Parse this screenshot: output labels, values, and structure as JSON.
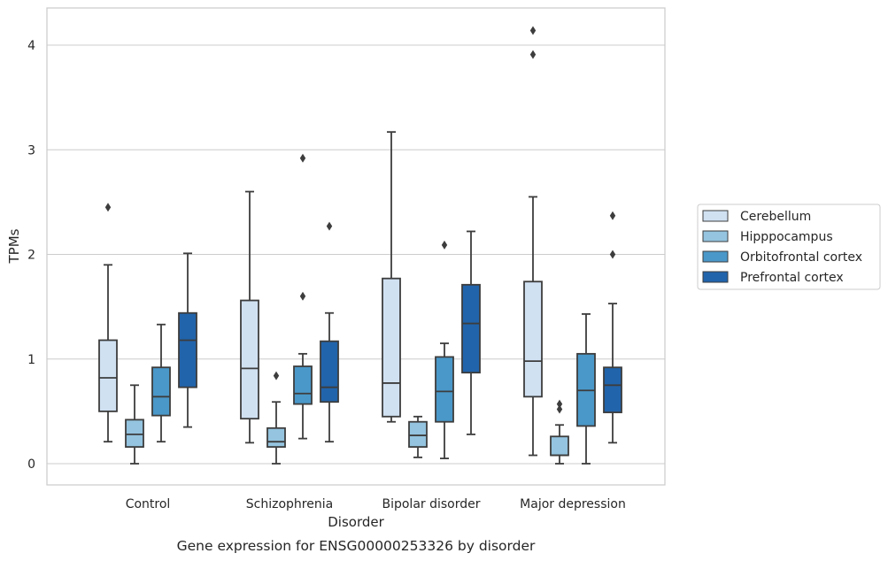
{
  "chart_data": {
    "type": "box",
    "caption": "Gene expression for ENSG00000253326 by disorder",
    "xlabel": "Disorder",
    "ylabel": "TPMs",
    "ylim": [
      -0.2,
      4.35
    ],
    "yticks": [
      0,
      1,
      2,
      3,
      4
    ],
    "grid": "horizontal",
    "legend_position": "right",
    "categories": [
      "Control",
      "Schizophrenia",
      "Bipolar disorder",
      "Major depression"
    ],
    "series": [
      {
        "name": "Cerebellum",
        "color": "#d0e1f2",
        "boxes": [
          {
            "whislo": 0.21,
            "q1": 0.5,
            "med": 0.82,
            "q3": 1.18,
            "whishi": 1.9,
            "fliers": [
              2.45
            ]
          },
          {
            "whislo": 0.2,
            "q1": 0.43,
            "med": 0.91,
            "q3": 1.56,
            "whishi": 2.6,
            "fliers": []
          },
          {
            "whislo": 0.4,
            "q1": 0.45,
            "med": 0.77,
            "q3": 1.77,
            "whishi": 3.17,
            "fliers": []
          },
          {
            "whislo": 0.08,
            "q1": 0.64,
            "med": 0.98,
            "q3": 1.74,
            "whishi": 2.55,
            "fliers": [
              3.91,
              4.14
            ]
          }
        ]
      },
      {
        "name": "Hipppocampus",
        "color": "#94c4df",
        "boxes": [
          {
            "whislo": 0.0,
            "q1": 0.16,
            "med": 0.28,
            "q3": 0.42,
            "whishi": 0.75,
            "fliers": []
          },
          {
            "whislo": 0.0,
            "q1": 0.16,
            "med": 0.21,
            "q3": 0.34,
            "whishi": 0.59,
            "fliers": [
              0.84
            ]
          },
          {
            "whislo": 0.06,
            "q1": 0.16,
            "med": 0.27,
            "q3": 0.4,
            "whishi": 0.45,
            "fliers": []
          },
          {
            "whislo": 0.0,
            "q1": 0.08,
            "med": 0.08,
            "q3": 0.26,
            "whishi": 0.37,
            "fliers": [
              0.52,
              0.57
            ]
          }
        ]
      },
      {
        "name": "Orbitofrontal cortex",
        "color": "#4a98c9",
        "boxes": [
          {
            "whislo": 0.21,
            "q1": 0.46,
            "med": 0.64,
            "q3": 0.92,
            "whishi": 1.33,
            "fliers": []
          },
          {
            "whislo": 0.24,
            "q1": 0.57,
            "med": 0.67,
            "q3": 0.93,
            "whishi": 1.05,
            "fliers": [
              1.6,
              2.92
            ]
          },
          {
            "whislo": 0.05,
            "q1": 0.4,
            "med": 0.69,
            "q3": 1.02,
            "whishi": 1.15,
            "fliers": [
              2.09
            ]
          },
          {
            "whislo": 0.0,
            "q1": 0.36,
            "med": 0.7,
            "q3": 1.05,
            "whishi": 1.43,
            "fliers": []
          }
        ]
      },
      {
        "name": "Prefrontal cortex",
        "color": "#2164ab",
        "boxes": [
          {
            "whislo": 0.35,
            "q1": 0.73,
            "med": 1.18,
            "q3": 1.44,
            "whishi": 2.01,
            "fliers": []
          },
          {
            "whislo": 0.21,
            "q1": 0.59,
            "med": 0.73,
            "q3": 1.17,
            "whishi": 1.44,
            "fliers": [
              2.27
            ]
          },
          {
            "whislo": 0.28,
            "q1": 0.87,
            "med": 1.34,
            "q3": 1.71,
            "whishi": 2.22,
            "fliers": []
          },
          {
            "whislo": 0.2,
            "q1": 0.49,
            "med": 0.75,
            "q3": 0.92,
            "whishi": 1.53,
            "fliers": [
              2.0,
              2.37
            ]
          }
        ]
      }
    ]
  }
}
